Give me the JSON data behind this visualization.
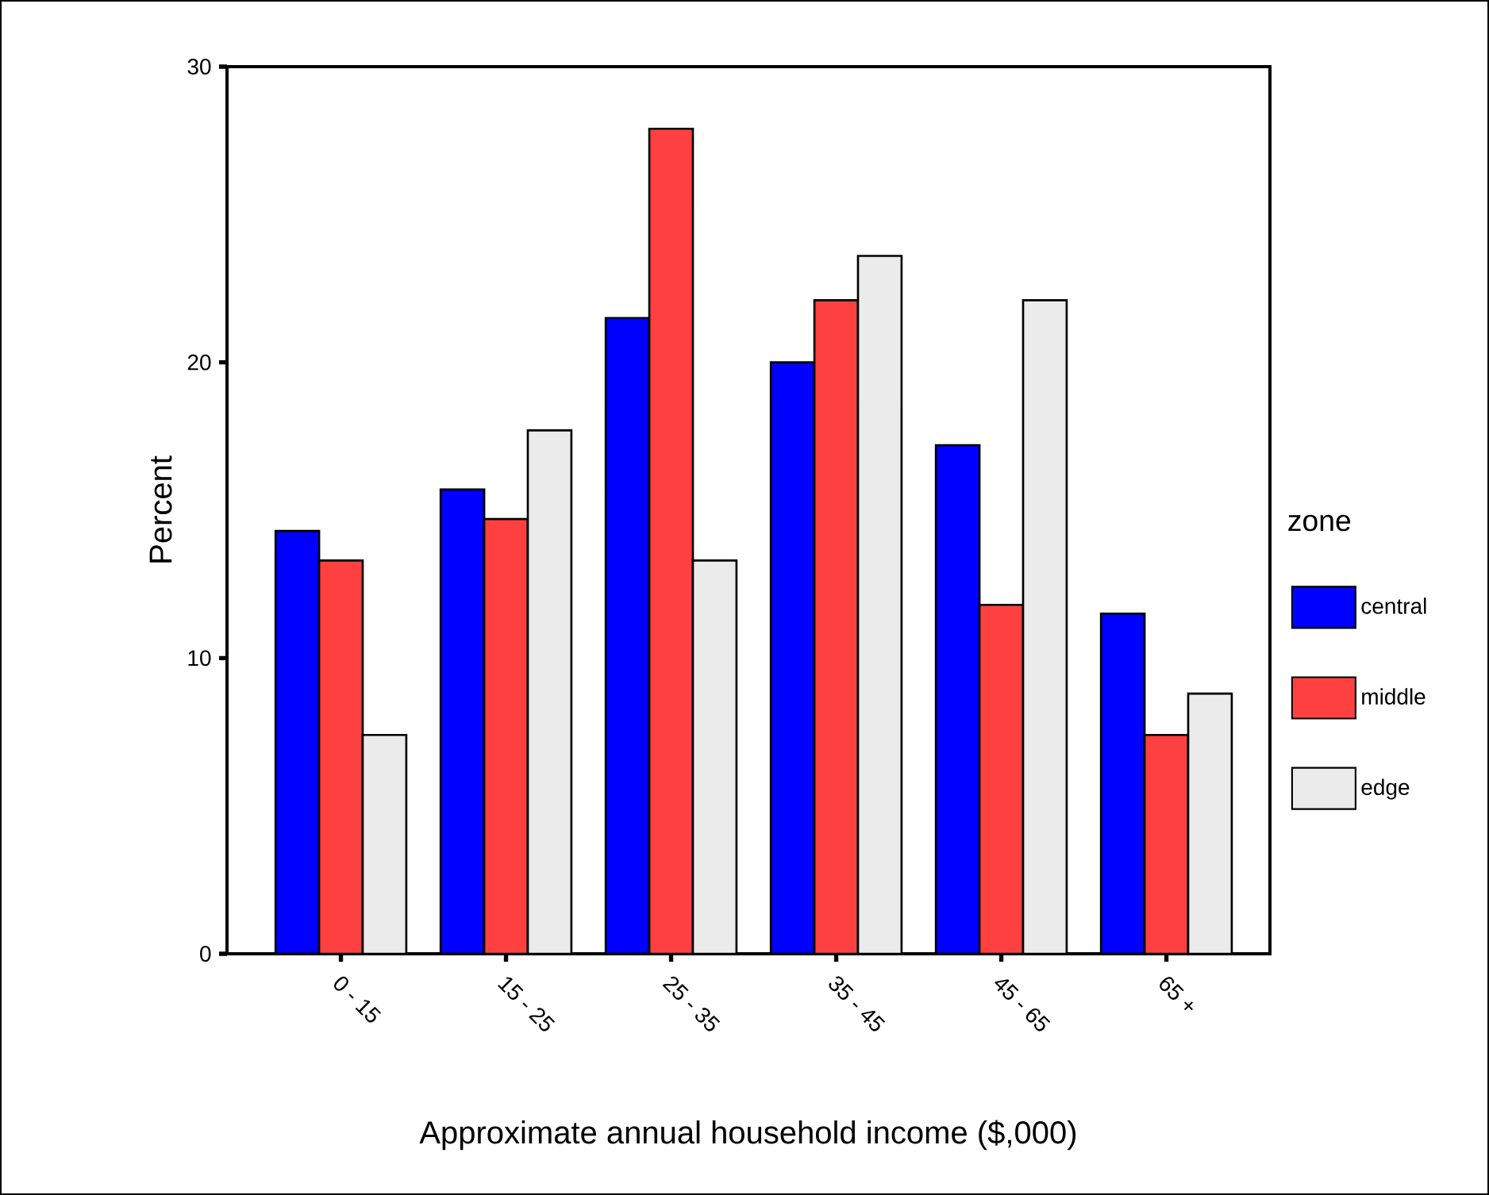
{
  "chart_data": {
    "type": "bar",
    "xlabel": "Approximate annual household income ($,000)",
    "ylabel": "Percent",
    "legend_title": "zone",
    "legend": "right",
    "categories": [
      "0 - 15",
      "15 - 25",
      "25 - 35",
      "35 - 45",
      "45 - 65",
      "65 +"
    ],
    "series": [
      {
        "name": "central",
        "color": "#0000ff",
        "values": [
          14.3,
          15.7,
          21.5,
          20.0,
          17.2,
          11.5
        ]
      },
      {
        "name": "middle",
        "color": "#ff4040",
        "values": [
          13.3,
          14.7,
          27.9,
          22.1,
          11.8,
          7.4
        ]
      },
      {
        "name": "edge",
        "color": "#ebebeb",
        "values": [
          7.4,
          17.7,
          13.3,
          23.6,
          22.1,
          8.8
        ]
      }
    ],
    "ylim": [
      0,
      30
    ],
    "yticks": [
      0,
      10,
      20,
      30
    ]
  }
}
